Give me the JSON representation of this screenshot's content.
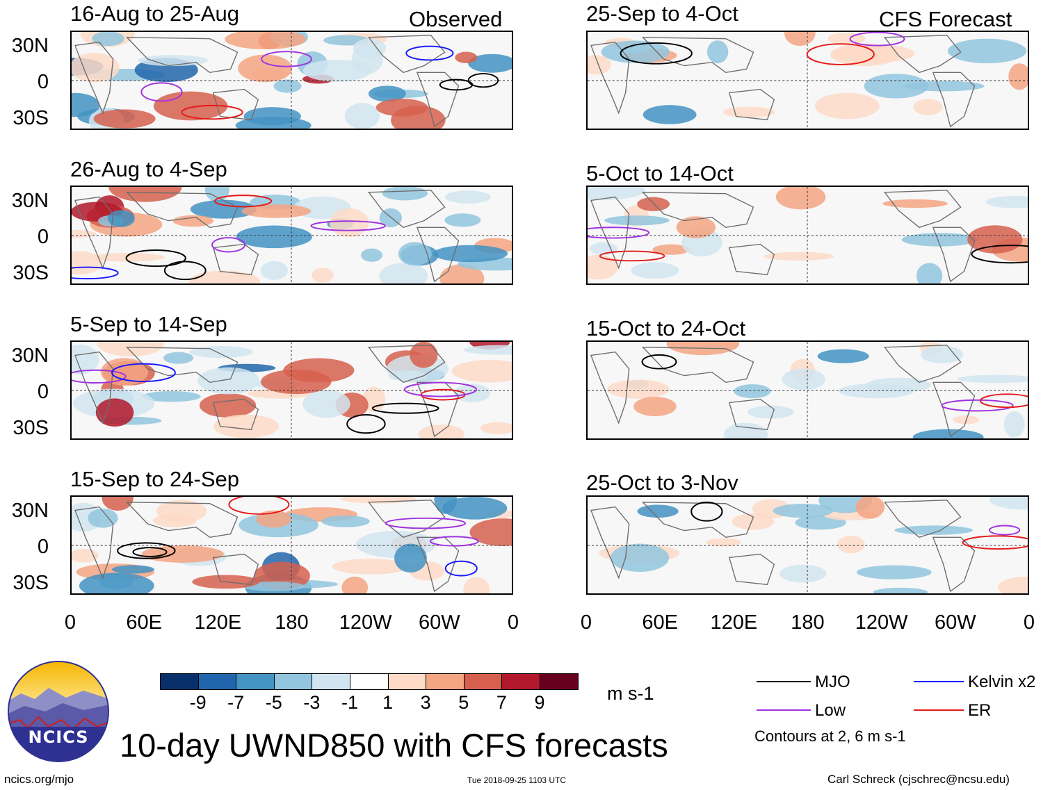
{
  "left_header": "Observed",
  "right_header": "CFS Forecast",
  "observed_panels": [
    {
      "title": "16-Aug to 25-Aug"
    },
    {
      "title": "26-Aug to 4-Sep"
    },
    {
      "title": "5-Sep to 14-Sep"
    },
    {
      "title": "15-Sep to 24-Sep"
    }
  ],
  "forecast_panels": [
    {
      "title": "25-Sep to 4-Oct"
    },
    {
      "title": "5-Oct to 14-Oct"
    },
    {
      "title": "15-Oct to 24-Oct"
    },
    {
      "title": "25-Oct to 3-Nov"
    }
  ],
  "y_axis_labels": [
    "30N",
    "0",
    "30S"
  ],
  "x_axis_labels": [
    "0",
    "60E",
    "120E",
    "180",
    "120W",
    "60W",
    "0"
  ],
  "colorbar": {
    "colors": [
      "#08306b",
      "#2166ac",
      "#4393c3",
      "#92c5de",
      "#d1e5f0",
      "#ffffff",
      "#fddbc7",
      "#f4a582",
      "#d6604d",
      "#b2182b",
      "#67001f"
    ],
    "ticks": [
      "-9",
      "-7",
      "-5",
      "-3",
      "-1",
      "1",
      "3",
      "5",
      "7",
      "9"
    ],
    "units": "m s-1"
  },
  "legend": {
    "items": [
      {
        "label": "MJO",
        "color": "#000000"
      },
      {
        "label": "Kelvin x2",
        "color": "#1a1aff"
      },
      {
        "label": "Low",
        "color": "#a032e0"
      },
      {
        "label": "ER",
        "color": "#e61919"
      }
    ],
    "contours_note": "Contours at 2, 6 m s-1"
  },
  "logo": {
    "text": "NCICS"
  },
  "main_title": "10-day UWND850 with CFS forecasts",
  "footer": {
    "url": "ncics.org/mjo",
    "timestamp": "Tue 2018-09-25 1103 UTC",
    "author": "Carl Schreck (cjschrec@ncsu.edu)"
  }
}
